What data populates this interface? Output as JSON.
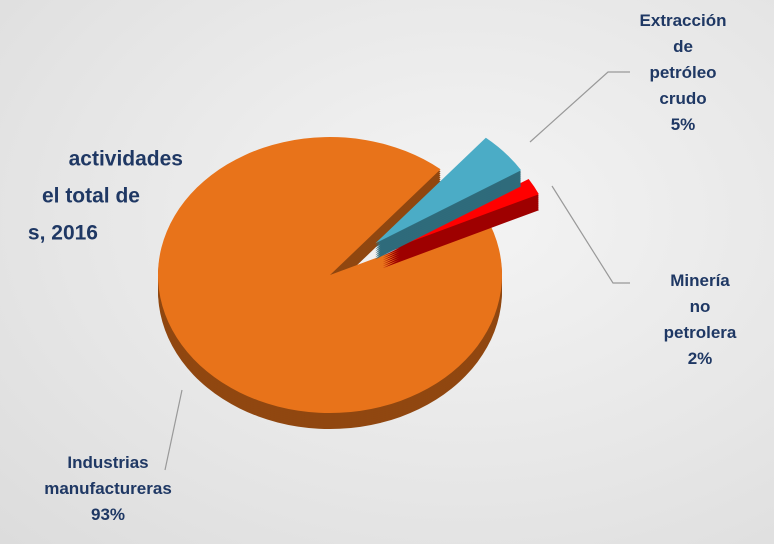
{
  "chart_data": {
    "type": "pie",
    "title_lines": [
      "actividades",
      "el total de",
      "s, 2016"
    ],
    "categories": [
      "Extracción de\npetróleo\ncrudo",
      "Minería no\npetrolera",
      "Industrias\nmanufactureras"
    ],
    "values": [
      5,
      2,
      93
    ],
    "value_labels": [
      "5%",
      "2%",
      "93%"
    ],
    "colors": [
      "#4bacc6",
      "#ff0000",
      "#e8731a"
    ]
  }
}
